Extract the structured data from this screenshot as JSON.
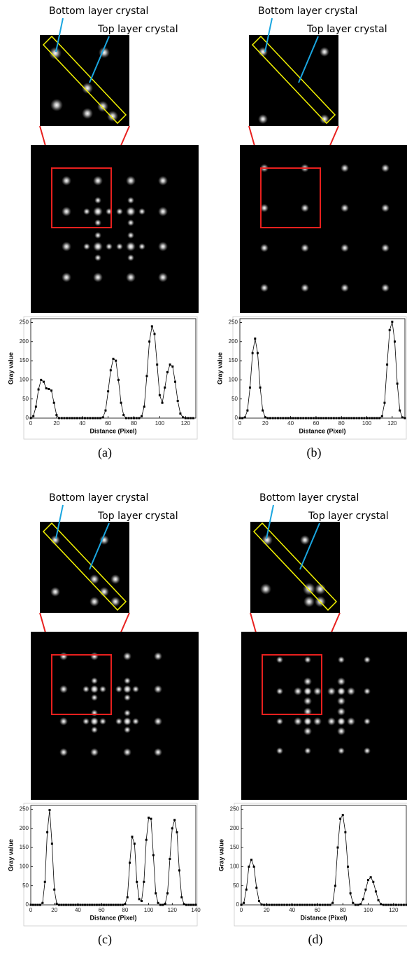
{
  "chart_data": [
    {
      "type": "line",
      "panel_label": "(a)",
      "annotations": [
        "Bottom layer crystal",
        "Top layer crystal"
      ],
      "x_label": "Distance (Pixel)",
      "y_label": "Gray value",
      "color": "#000000",
      "xlim": [
        0,
        128
      ],
      "ylim": [
        0,
        260
      ],
      "xticks": [
        0,
        20,
        40,
        60,
        80,
        100,
        120
      ],
      "yticks": [
        0,
        50,
        100,
        150,
        200,
        250
      ],
      "x": [
        0,
        2,
        4,
        6,
        8,
        10,
        12,
        14,
        16,
        18,
        20,
        22,
        24,
        26,
        28,
        30,
        32,
        34,
        36,
        38,
        40,
        42,
        44,
        46,
        48,
        50,
        52,
        54,
        56,
        58,
        60,
        62,
        64,
        66,
        68,
        70,
        72,
        74,
        76,
        78,
        80,
        82,
        84,
        86,
        88,
        90,
        92,
        94,
        96,
        98,
        100,
        102,
        104,
        106,
        108,
        110,
        112,
        114,
        116,
        118,
        120,
        122,
        124,
        126
      ],
      "values": [
        0,
        5,
        30,
        75,
        100,
        95,
        78,
        76,
        72,
        40,
        8,
        0,
        0,
        0,
        0,
        0,
        0,
        0,
        0,
        0,
        0,
        0,
        0,
        0,
        0,
        0,
        0,
        0,
        2,
        20,
        70,
        125,
        155,
        150,
        100,
        40,
        8,
        0,
        0,
        0,
        0,
        0,
        0,
        5,
        30,
        110,
        200,
        240,
        220,
        140,
        60,
        40,
        80,
        120,
        140,
        135,
        95,
        45,
        12,
        2,
        0,
        0,
        0,
        0
      ]
    },
    {
      "type": "line",
      "panel_label": "(b)",
      "annotations": [
        "Bottom layer crystal",
        "Top layer crystal"
      ],
      "x_label": "Distance (Pixel)",
      "y_label": "Gray value",
      "color": "#000000",
      "xlim": [
        0,
        130
      ],
      "ylim": [
        0,
        260
      ],
      "xticks": [
        0,
        20,
        40,
        60,
        80,
        100,
        120
      ],
      "yticks": [
        0,
        50,
        100,
        150,
        200,
        250
      ],
      "x": [
        0,
        2,
        4,
        6,
        8,
        10,
        12,
        14,
        16,
        18,
        20,
        22,
        24,
        26,
        28,
        30,
        32,
        34,
        36,
        38,
        40,
        42,
        44,
        46,
        48,
        50,
        52,
        54,
        56,
        58,
        60,
        62,
        64,
        66,
        68,
        70,
        72,
        74,
        76,
        78,
        80,
        82,
        84,
        86,
        88,
        90,
        92,
        94,
        96,
        98,
        100,
        102,
        104,
        106,
        108,
        110,
        112,
        114,
        116,
        118,
        120,
        122,
        124,
        126,
        128,
        130
      ],
      "values": [
        0,
        0,
        2,
        20,
        80,
        170,
        208,
        170,
        80,
        20,
        2,
        0,
        0,
        0,
        0,
        0,
        0,
        0,
        0,
        0,
        0,
        0,
        0,
        0,
        0,
        0,
        0,
        0,
        0,
        0,
        0,
        0,
        0,
        0,
        0,
        0,
        0,
        0,
        0,
        0,
        0,
        0,
        0,
        0,
        0,
        0,
        0,
        0,
        0,
        0,
        0,
        0,
        0,
        0,
        0,
        0,
        5,
        40,
        140,
        230,
        252,
        200,
        90,
        20,
        2,
        0
      ]
    },
    {
      "type": "line",
      "panel_label": "(c)",
      "annotations": [
        "Bottom layer crystal",
        "Top layer crystal"
      ],
      "x_label": "Distance (Pixel)",
      "y_label": "Gray value",
      "color": "#000000",
      "xlim": [
        0,
        140
      ],
      "ylim": [
        0,
        260
      ],
      "xticks": [
        0,
        20,
        40,
        60,
        80,
        100,
        120,
        140
      ],
      "yticks": [
        0,
        50,
        100,
        150,
        200,
        250
      ],
      "x": [
        0,
        2,
        4,
        6,
        8,
        10,
        12,
        14,
        16,
        18,
        20,
        22,
        24,
        26,
        28,
        30,
        32,
        34,
        36,
        38,
        40,
        42,
        44,
        46,
        48,
        50,
        52,
        54,
        56,
        58,
        60,
        62,
        64,
        66,
        68,
        70,
        72,
        74,
        76,
        78,
        80,
        82,
        84,
        86,
        88,
        90,
        92,
        94,
        96,
        98,
        100,
        102,
        104,
        106,
        108,
        110,
        112,
        114,
        116,
        118,
        120,
        122,
        124,
        126,
        128,
        130,
        132,
        134,
        136,
        138,
        140
      ],
      "values": [
        0,
        0,
        0,
        0,
        0,
        5,
        60,
        190,
        248,
        160,
        40,
        3,
        0,
        0,
        0,
        0,
        0,
        0,
        0,
        0,
        0,
        0,
        0,
        0,
        0,
        0,
        0,
        0,
        0,
        0,
        0,
        0,
        0,
        0,
        0,
        0,
        0,
        0,
        0,
        0,
        2,
        20,
        110,
        178,
        160,
        60,
        15,
        10,
        60,
        170,
        228,
        225,
        130,
        30,
        5,
        0,
        0,
        3,
        30,
        120,
        200,
        222,
        190,
        90,
        20,
        2,
        0,
        0,
        0,
        0,
        0
      ]
    },
    {
      "type": "line",
      "panel_label": "(d)",
      "annotations": [
        "Bottom layer crystal",
        "Top layer crystal"
      ],
      "x_label": "Distance (Pixel)",
      "y_label": "Gray value",
      "color": "#000000",
      "xlim": [
        0,
        130
      ],
      "ylim": [
        0,
        260
      ],
      "xticks": [
        0,
        20,
        40,
        60,
        80,
        100,
        120
      ],
      "yticks": [
        0,
        50,
        100,
        150,
        200,
        250
      ],
      "x": [
        0,
        2,
        4,
        6,
        8,
        10,
        12,
        14,
        16,
        18,
        20,
        22,
        24,
        26,
        28,
        30,
        32,
        34,
        36,
        38,
        40,
        42,
        44,
        46,
        48,
        50,
        52,
        54,
        56,
        58,
        60,
        62,
        64,
        66,
        68,
        70,
        72,
        74,
        76,
        78,
        80,
        82,
        84,
        86,
        88,
        90,
        92,
        94,
        96,
        98,
        100,
        102,
        104,
        106,
        108,
        110,
        112,
        114,
        116,
        118,
        120,
        122,
        124,
        126,
        128,
        130
      ],
      "values": [
        0,
        5,
        40,
        100,
        118,
        100,
        45,
        10,
        1,
        0,
        0,
        0,
        0,
        0,
        0,
        0,
        0,
        0,
        0,
        0,
        0,
        0,
        0,
        0,
        0,
        0,
        0,
        0,
        0,
        0,
        0,
        0,
        0,
        0,
        0,
        0,
        5,
        50,
        150,
        225,
        235,
        190,
        100,
        30,
        5,
        0,
        0,
        2,
        15,
        40,
        65,
        72,
        60,
        35,
        12,
        2,
        0,
        0,
        0,
        0,
        0,
        0,
        0,
        0,
        0,
        0
      ]
    }
  ]
}
